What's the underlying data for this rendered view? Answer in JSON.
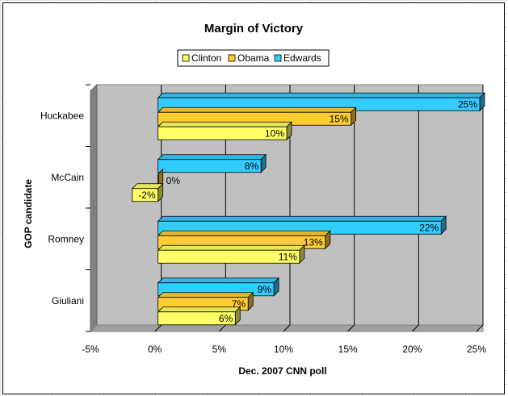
{
  "chart_data": {
    "type": "bar",
    "orientation": "horizontal",
    "title": "Margin of Victory",
    "xlabel": "Dec. 2007 CNN poll",
    "ylabel": "GOP candidate",
    "categories": [
      "Huckabee",
      "McCain",
      "Romney",
      "Giuliani"
    ],
    "series": [
      {
        "name": "Clinton",
        "color": "#ffff66",
        "values": [
          10,
          -2,
          11,
          6
        ],
        "labels": [
          "10%",
          "-2%",
          "11%",
          "6%"
        ]
      },
      {
        "name": "Obama",
        "color": "#ffcc33",
        "values": [
          15,
          0,
          13,
          7
        ],
        "labels": [
          "15%",
          "0%",
          "13%",
          "7%"
        ]
      },
      {
        "name": "Edwards",
        "color": "#33ccff",
        "values": [
          25,
          8,
          22,
          9
        ],
        "labels": [
          "25%",
          "8%",
          "22%",
          "9%"
        ]
      }
    ],
    "xlim": [
      -5,
      25
    ],
    "xticks": [
      -5,
      0,
      5,
      10,
      15,
      20,
      25
    ],
    "xtick_labels": [
      "-5%",
      "0%",
      "5%",
      "10%",
      "15%",
      "20%",
      "25%"
    ],
    "legend_position": "top",
    "grid": true,
    "style": "3d"
  }
}
